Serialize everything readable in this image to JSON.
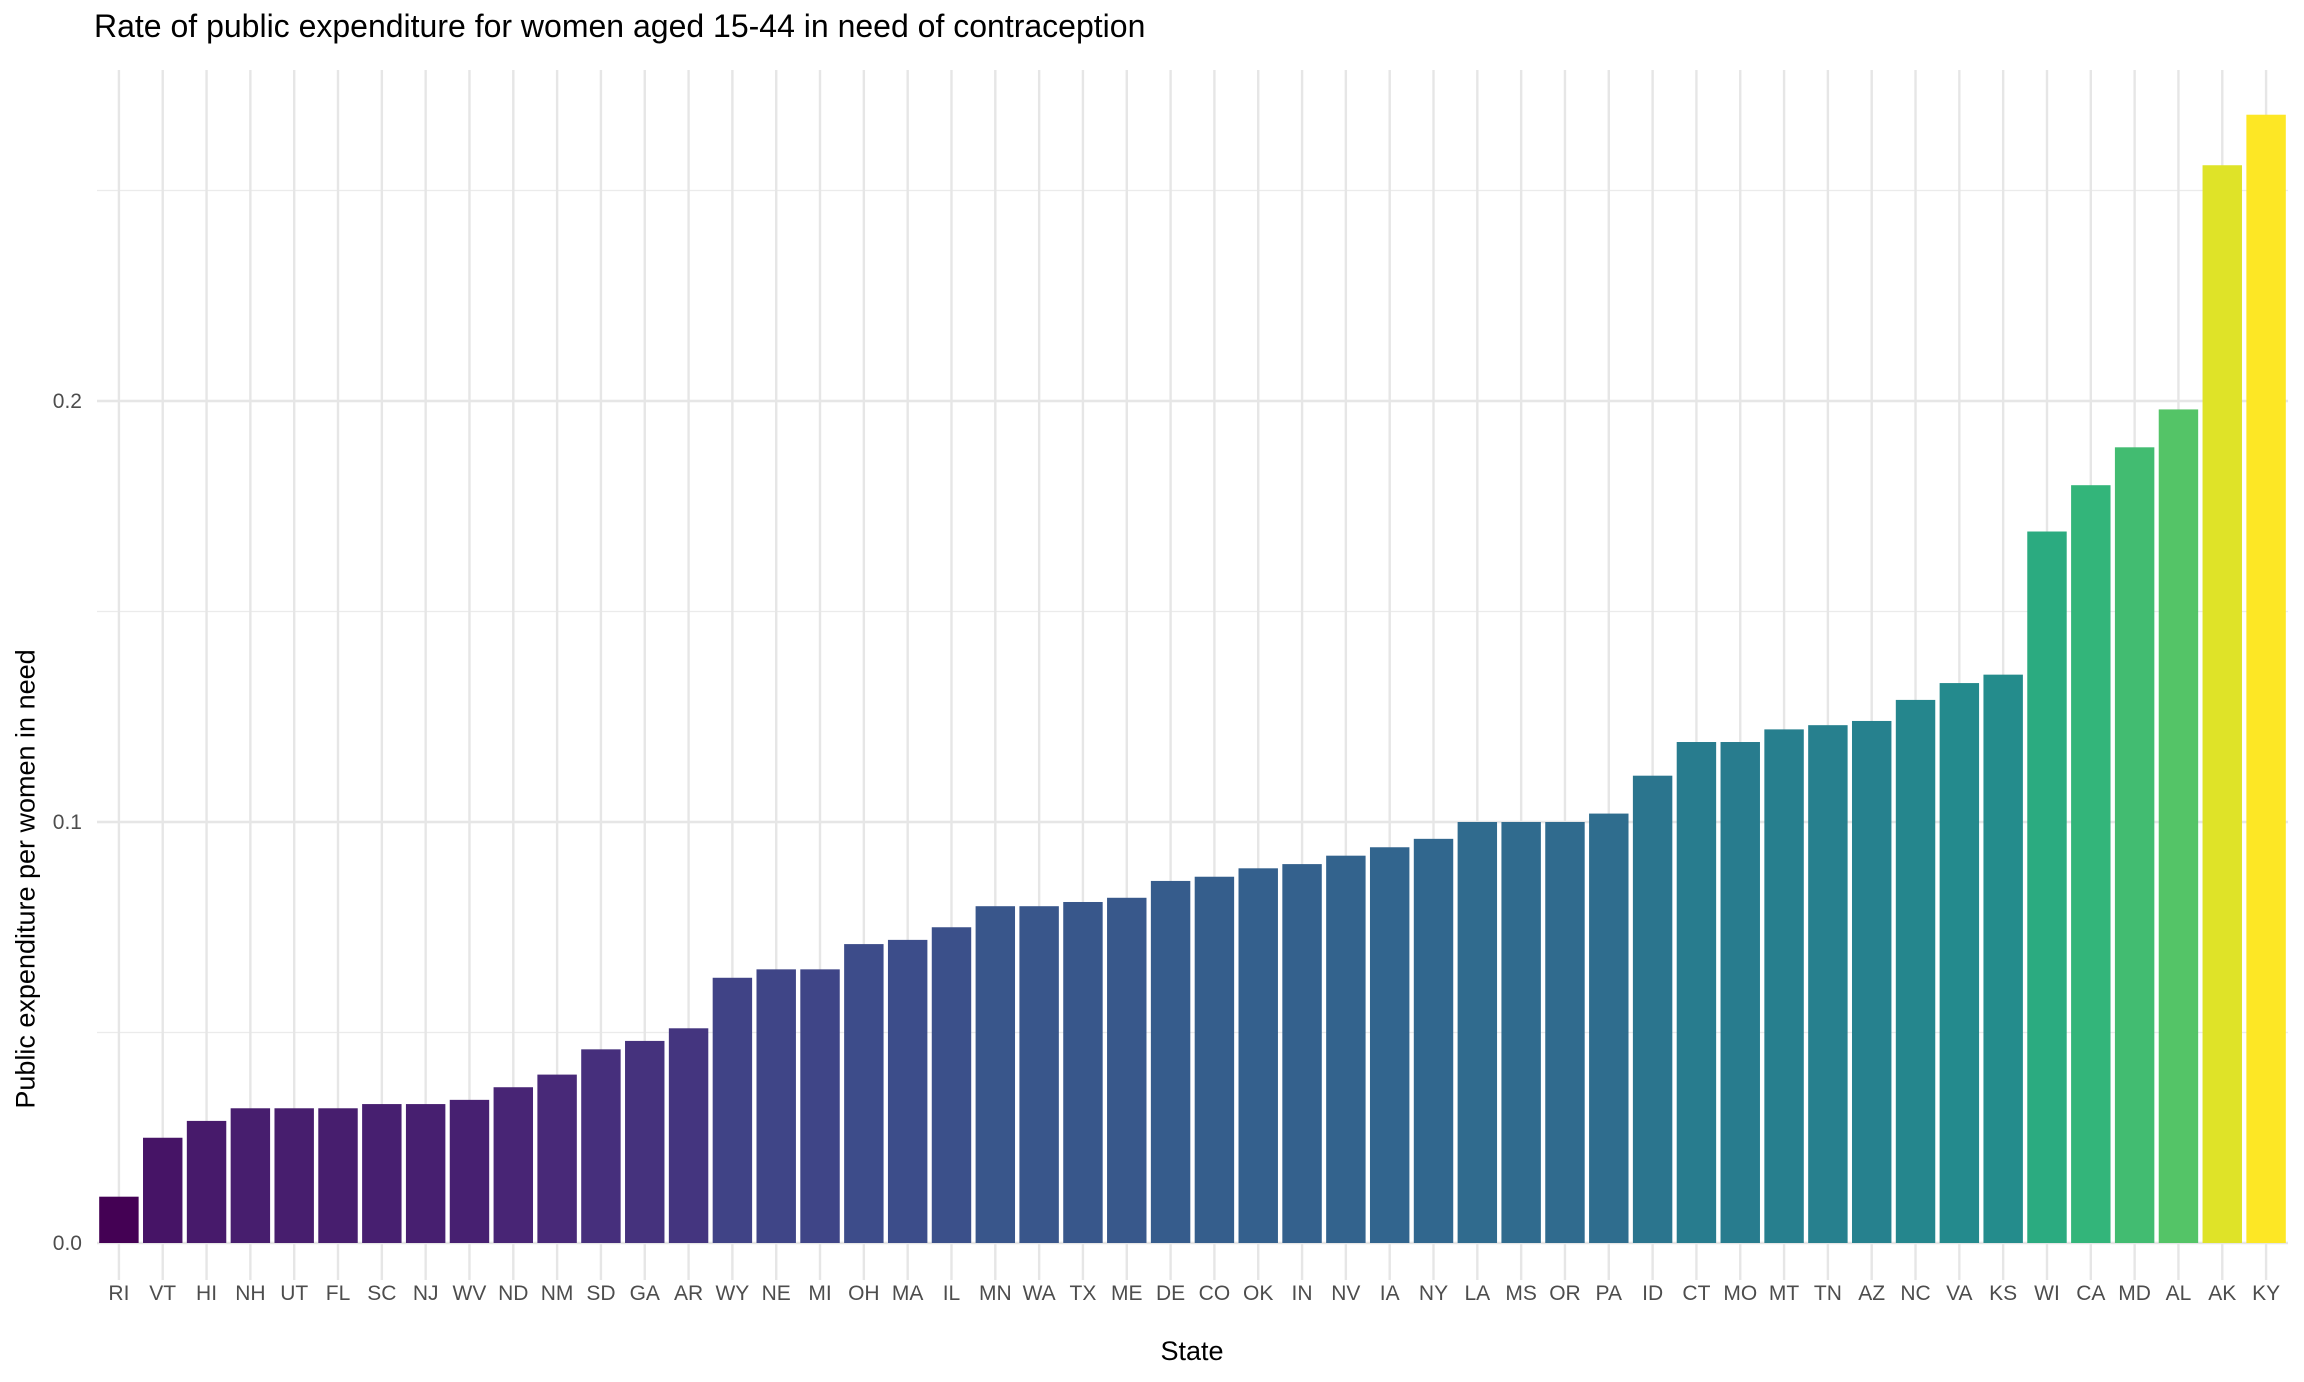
{
  "chart_data": {
    "type": "bar",
    "title": "Rate of public expenditure for women aged 15-44 in need of contraception",
    "xlabel": "State",
    "ylabel": "Public expenditure per women in need",
    "ylim": [
      0,
      0.268
    ],
    "yticks": [
      0.0,
      0.1,
      0.2
    ],
    "ytick_labels": [
      "0.0",
      "0.1",
      "0.2"
    ],
    "grid": true,
    "color_scale": "viridis",
    "categories": [
      "RI",
      "VT",
      "HI",
      "NH",
      "UT",
      "FL",
      "SC",
      "NJ",
      "WV",
      "ND",
      "NM",
      "SD",
      "GA",
      "AR",
      "WY",
      "NE",
      "MI",
      "OH",
      "MA",
      "IL",
      "MN",
      "WA",
      "TX",
      "ME",
      "DE",
      "CO",
      "OK",
      "IN",
      "NV",
      "IA",
      "NY",
      "LA",
      "MS",
      "OR",
      "PA",
      "ID",
      "CT",
      "MO",
      "MT",
      "TN",
      "AZ",
      "NC",
      "VA",
      "KS",
      "WI",
      "CA",
      "MD",
      "AL",
      "AK",
      "KY"
    ],
    "values": [
      0.011,
      0.025,
      0.029,
      0.032,
      0.032,
      0.032,
      0.033,
      0.033,
      0.034,
      0.037,
      0.04,
      0.046,
      0.048,
      0.051,
      0.063,
      0.065,
      0.065,
      0.071,
      0.072,
      0.075,
      0.08,
      0.08,
      0.081,
      0.082,
      0.086,
      0.087,
      0.089,
      0.09,
      0.092,
      0.094,
      0.096,
      0.1,
      0.1,
      0.1,
      0.102,
      0.111,
      0.119,
      0.119,
      0.122,
      0.123,
      0.124,
      0.129,
      0.133,
      0.135,
      0.169,
      0.18,
      0.189,
      0.198,
      0.256,
      0.268
    ]
  }
}
